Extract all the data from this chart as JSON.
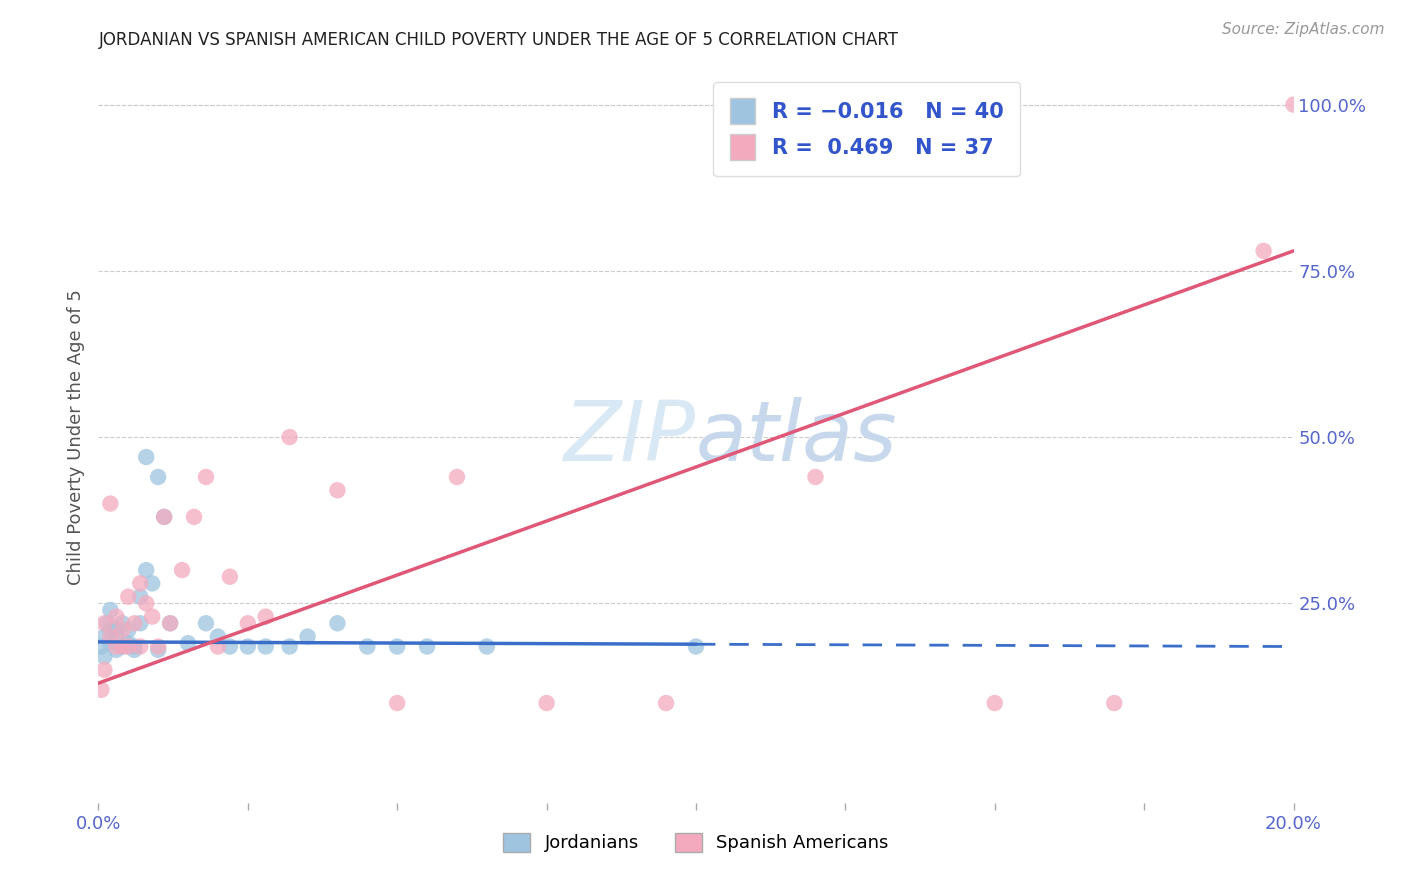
{
  "title": "JORDANIAN VS SPANISH AMERICAN CHILD POVERTY UNDER THE AGE OF 5 CORRELATION CHART",
  "source": "Source: ZipAtlas.com",
  "ylabel": "Child Poverty Under the Age of 5",
  "right_ytick_labels": [
    "100.0%",
    "75.0%",
    "50.0%",
    "25.0%"
  ],
  "right_ytick_values": [
    1.0,
    0.75,
    0.5,
    0.25
  ],
  "color_jordanians": "#9EC4E0",
  "color_spanish": "#F4AABE",
  "color_jordanians_line": "#3B6EC8",
  "color_spanish_line": "#E05878",
  "watermark_color": "#D8E8F5",
  "background_color": "#FFFFFF",
  "jordanians_x": [
    0.0005,
    0.001,
    0.001,
    0.0015,
    0.002,
    0.002,
    0.002,
    0.003,
    0.003,
    0.003,
    0.004,
    0.004,
    0.005,
    0.005,
    0.005,
    0.006,
    0.006,
    0.007,
    0.007,
    0.008,
    0.008,
    0.009,
    0.01,
    0.01,
    0.011,
    0.012,
    0.015,
    0.018,
    0.02,
    0.022,
    0.025,
    0.028,
    0.032,
    0.035,
    0.04,
    0.045,
    0.05,
    0.055,
    0.065,
    0.1
  ],
  "jordanians_y": [
    0.185,
    0.17,
    0.2,
    0.22,
    0.19,
    0.21,
    0.24,
    0.18,
    0.2,
    0.21,
    0.185,
    0.22,
    0.185,
    0.19,
    0.21,
    0.185,
    0.18,
    0.26,
    0.22,
    0.47,
    0.3,
    0.28,
    0.44,
    0.18,
    0.38,
    0.22,
    0.19,
    0.22,
    0.2,
    0.185,
    0.185,
    0.185,
    0.185,
    0.2,
    0.22,
    0.185,
    0.185,
    0.185,
    0.185,
    0.185
  ],
  "spanish_x": [
    0.0005,
    0.001,
    0.001,
    0.002,
    0.002,
    0.003,
    0.003,
    0.004,
    0.004,
    0.005,
    0.005,
    0.006,
    0.007,
    0.007,
    0.008,
    0.009,
    0.01,
    0.011,
    0.012,
    0.014,
    0.016,
    0.018,
    0.02,
    0.022,
    0.025,
    0.028,
    0.032,
    0.04,
    0.05,
    0.06,
    0.075,
    0.095,
    0.12,
    0.15,
    0.17,
    0.195,
    0.2
  ],
  "spanish_y": [
    0.12,
    0.15,
    0.22,
    0.2,
    0.4,
    0.23,
    0.185,
    0.21,
    0.185,
    0.26,
    0.185,
    0.22,
    0.28,
    0.185,
    0.25,
    0.23,
    0.185,
    0.38,
    0.22,
    0.3,
    0.38,
    0.44,
    0.185,
    0.29,
    0.22,
    0.23,
    0.5,
    0.42,
    0.1,
    0.44,
    0.1,
    0.1,
    0.44,
    0.1,
    0.1,
    0.78,
    1.0
  ],
  "jord_line_y0": 0.192,
  "jord_line_y1": 0.185,
  "span_line_y0": 0.13,
  "span_line_y1": 0.78,
  "xlim": [
    0.0,
    0.2
  ],
  "ylim": [
    -0.05,
    1.05
  ],
  "xticks": [
    0.0,
    0.025,
    0.05,
    0.075,
    0.1,
    0.125,
    0.15,
    0.175,
    0.2
  ],
  "xtick_labels": [
    "0.0%",
    "",
    "",
    "",
    "",
    "",
    "",
    "",
    "20.0%"
  ]
}
